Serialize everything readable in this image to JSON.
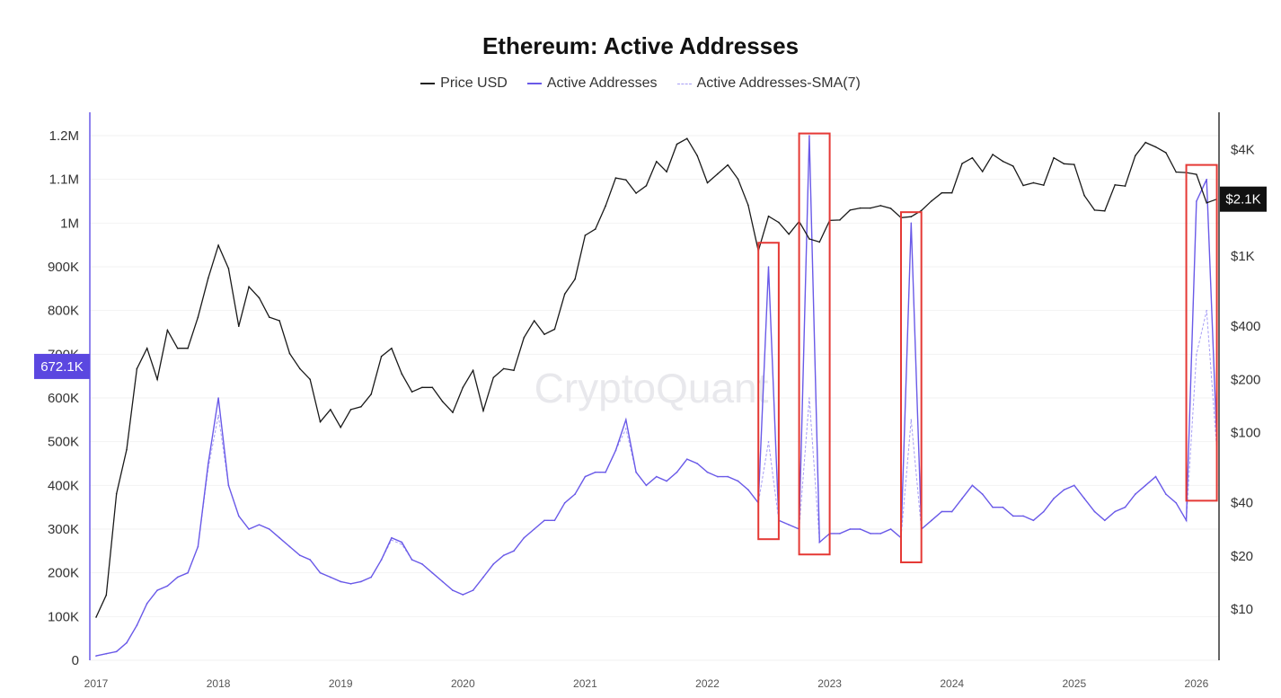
{
  "chart_data": {
    "type": "line",
    "title": "Ethereum: Active Addresses",
    "watermark": "CryptoQuant",
    "legend_position": "top-center",
    "grid": true,
    "x_ticks": [
      "2017",
      "2018",
      "2019",
      "2020",
      "2021",
      "2022",
      "2023",
      "2024",
      "2025",
      "2026"
    ],
    "left_axis": {
      "scale": "linear",
      "range": [
        0,
        1200000
      ],
      "ticks": [
        "0",
        "100K",
        "200K",
        "300K",
        "400K",
        "500K",
        "600K",
        "700K",
        "800K",
        "900K",
        "1M",
        "1.1M",
        "1.2M"
      ],
      "current_label": "672.1K"
    },
    "right_axis": {
      "scale": "log",
      "range": [
        5,
        6000
      ],
      "ticks": [
        "$10",
        "$20",
        "$40",
        "$100",
        "$200",
        "$400",
        "$1K",
        "$4K"
      ],
      "current_label": "$2.1K"
    },
    "colors": {
      "price": "#1a1a1a",
      "active": "#6a5ae8",
      "sma": "#a79ef5",
      "highlight": "#e53935",
      "current_left_bg": "#5b47e0",
      "current_right_bg": "#111111"
    },
    "months": [
      "2017-01",
      "2017-02",
      "2017-03",
      "2017-04",
      "2017-05",
      "2017-06",
      "2017-07",
      "2017-08",
      "2017-09",
      "2017-10",
      "2017-11",
      "2017-12",
      "2018-01",
      "2018-02",
      "2018-03",
      "2018-04",
      "2018-05",
      "2018-06",
      "2018-07",
      "2018-08",
      "2018-09",
      "2018-10",
      "2018-11",
      "2018-12",
      "2019-01",
      "2019-02",
      "2019-03",
      "2019-04",
      "2019-05",
      "2019-06",
      "2019-07",
      "2019-08",
      "2019-09",
      "2019-10",
      "2019-11",
      "2019-12",
      "2020-01",
      "2020-02",
      "2020-03",
      "2020-04",
      "2020-05",
      "2020-06",
      "2020-07",
      "2020-08",
      "2020-09",
      "2020-10",
      "2020-11",
      "2020-12",
      "2021-01",
      "2021-02",
      "2021-03",
      "2021-04",
      "2021-05",
      "2021-06",
      "2021-07",
      "2021-08",
      "2021-09",
      "2021-10",
      "2021-11",
      "2021-12",
      "2022-01",
      "2022-02",
      "2022-03",
      "2022-04",
      "2022-05",
      "2022-06",
      "2022-07",
      "2022-08",
      "2022-09",
      "2022-10",
      "2022-11",
      "2022-12",
      "2023-01",
      "2023-02",
      "2023-03",
      "2023-04",
      "2023-05",
      "2023-06",
      "2023-07",
      "2023-08",
      "2023-09",
      "2023-10",
      "2023-11",
      "2023-12",
      "2024-01",
      "2024-02",
      "2024-03",
      "2024-04",
      "2024-05",
      "2024-06",
      "2024-07",
      "2024-08",
      "2024-09",
      "2024-10",
      "2024-11",
      "2024-12",
      "2025-01",
      "2025-02",
      "2025-03",
      "2025-04",
      "2025-05",
      "2025-06",
      "2025-07",
      "2025-08",
      "2025-09",
      "2025-10",
      "2025-11",
      "2025-12",
      "2026-01",
      "2026-02",
      "2026-03"
    ],
    "series": [
      {
        "name": "Price USD",
        "axis": "right",
        "values": [
          9,
          12,
          45,
          80,
          230,
          300,
          200,
          380,
          300,
          300,
          450,
          750,
          1150,
          850,
          400,
          670,
          580,
          450,
          430,
          280,
          230,
          200,
          115,
          135,
          107,
          135,
          140,
          165,
          270,
          300,
          215,
          170,
          180,
          180,
          150,
          130,
          180,
          225,
          133,
          205,
          230,
          225,
          345,
          430,
          360,
          385,
          610,
          740,
          1310,
          1420,
          1920,
          2770,
          2700,
          2270,
          2500,
          3430,
          3000,
          4300,
          4630,
          3700,
          2600,
          2920,
          3280,
          2730,
          1940,
          1070,
          1680,
          1550,
          1330,
          1570,
          1250,
          1200,
          1590,
          1600,
          1820,
          1870,
          1870,
          1930,
          1860,
          1650,
          1670,
          1810,
          2050,
          2280,
          2280,
          3340,
          3600,
          3010,
          3760,
          3440,
          3230,
          2510,
          2600,
          2520,
          3600,
          3330,
          3300,
          2200,
          1820,
          1800,
          2530,
          2490,
          3700,
          4400,
          4150,
          3850,
          2990,
          2970,
          2900,
          2000,
          2100
        ]
      },
      {
        "name": "Active Addresses",
        "axis": "left",
        "values": [
          10000,
          15000,
          20000,
          40000,
          80000,
          130000,
          160000,
          170000,
          190000,
          200000,
          260000,
          450000,
          600000,
          400000,
          330000,
          300000,
          310000,
          300000,
          280000,
          260000,
          240000,
          230000,
          200000,
          190000,
          180000,
          175000,
          180000,
          190000,
          230000,
          280000,
          270000,
          230000,
          220000,
          200000,
          180000,
          160000,
          150000,
          160000,
          190000,
          220000,
          240000,
          250000,
          280000,
          300000,
          320000,
          320000,
          360000,
          380000,
          420000,
          430000,
          430000,
          480000,
          550000,
          430000,
          400000,
          420000,
          410000,
          430000,
          460000,
          450000,
          430000,
          420000,
          420000,
          410000,
          390000,
          360000,
          900000,
          320000,
          310000,
          300000,
          1200000,
          270000,
          290000,
          290000,
          300000,
          300000,
          290000,
          290000,
          300000,
          280000,
          1000000,
          300000,
          320000,
          340000,
          340000,
          370000,
          400000,
          380000,
          350000,
          350000,
          330000,
          330000,
          320000,
          340000,
          370000,
          390000,
          400000,
          370000,
          340000,
          320000,
          340000,
          350000,
          380000,
          400000,
          420000,
          380000,
          360000,
          320000,
          1050000,
          1100000,
          500000
        ]
      },
      {
        "name": "Active Addresses-SMA(7)",
        "axis": "left",
        "values": [
          10000,
          15000,
          20000,
          40000,
          80000,
          130000,
          160000,
          170000,
          190000,
          200000,
          260000,
          440000,
          560000,
          400000,
          330000,
          300000,
          310000,
          300000,
          280000,
          260000,
          240000,
          230000,
          200000,
          190000,
          180000,
          175000,
          180000,
          190000,
          230000,
          275000,
          265000,
          230000,
          220000,
          200000,
          180000,
          160000,
          150000,
          160000,
          190000,
          220000,
          240000,
          250000,
          280000,
          300000,
          320000,
          320000,
          360000,
          380000,
          420000,
          430000,
          430000,
          480000,
          530000,
          430000,
          400000,
          420000,
          410000,
          430000,
          460000,
          450000,
          430000,
          420000,
          420000,
          410000,
          390000,
          360000,
          500000,
          320000,
          310000,
          300000,
          600000,
          270000,
          290000,
          290000,
          300000,
          300000,
          290000,
          290000,
          300000,
          280000,
          550000,
          300000,
          320000,
          340000,
          340000,
          370000,
          400000,
          380000,
          350000,
          350000,
          330000,
          330000,
          320000,
          340000,
          370000,
          390000,
          400000,
          370000,
          340000,
          320000,
          340000,
          350000,
          380000,
          400000,
          420000,
          380000,
          360000,
          320000,
          700000,
          800000,
          480000
        ]
      }
    ],
    "highlights": [
      {
        "from": "2022-06",
        "to": "2022-08",
        "low": 277000,
        "high": 955000
      },
      {
        "from": "2022-10",
        "to": "2023-01",
        "low": 242000,
        "high": 1205000
      },
      {
        "from": "2023-08",
        "to": "2023-10",
        "low": 224000,
        "high": 1025000
      },
      {
        "from": "2025-12",
        "to": "2026-03",
        "low": 365000,
        "high": 1133000
      }
    ]
  }
}
